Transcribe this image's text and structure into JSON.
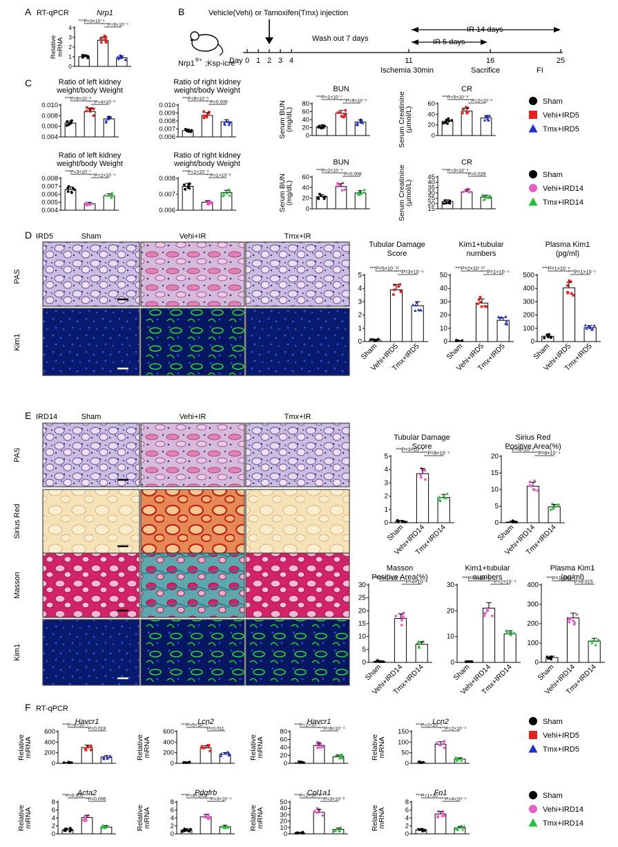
{
  "colors": {
    "sham": "#000000",
    "vehi5": "#e8211f",
    "tmx5": "#1f2fd6",
    "vehi14": "#e85ec8",
    "tmx14": "#22c435",
    "green_micro": "#1fd41f",
    "blue_micro": "#0a1e8a"
  },
  "panel_a": {
    "letter": "A",
    "title": "RT-qPCR",
    "gene": "Nrp1",
    "ylabel": "Relative mRNA",
    "stats": [
      "***P=3×10⁻⁶",
      "***P=6×10⁻⁷"
    ],
    "chart_data": {
      "type": "bar",
      "categories": [
        "Sham",
        "Vehi",
        "Tmx"
      ],
      "values": [
        1.0,
        2.7,
        0.9
      ],
      "errors": [
        0.2,
        0.25,
        0.1
      ],
      "ylim": [
        0,
        4
      ],
      "yticks": [
        "0",
        "1",
        "2",
        "3",
        "4"
      ],
      "colors": [
        "#000000",
        "#e8211f",
        "#1f2fd6"
      ]
    }
  },
  "panel_b": {
    "letter": "B",
    "title": "Vehicle(Vehi) or Tamoxifen(Tmx) injection",
    "mouse_label": "Nrp1 fl/+;Ksp-icre",
    "washout": "Wash out 7 days",
    "ir5": "IR 5 days",
    "ir14": "IR 14 days",
    "days": [
      "Day",
      "0",
      "1",
      "2",
      "3",
      "4",
      "11",
      "16",
      "25"
    ],
    "events": [
      "Ischemia 30min",
      "Sacrifice",
      "FI"
    ]
  },
  "panel_c": {
    "letter": "C",
    "legend_top": [
      "Sham",
      "Vehi+IRD5",
      "Tmx+IRD5"
    ],
    "legend_bottom": [
      "Sham",
      "Vehi+IRD14",
      "Tmx+IRD14"
    ],
    "charts": [
      {
        "title": [
          "Ratio of left kidney",
          "weight/body Weight"
        ],
        "ylabel": "",
        "stats": [
          "***P=6×10⁻⁶",
          "***P=4×10⁻⁶"
        ],
        "chart_data": {
          "type": "bar",
          "categories": [
            "Sham",
            "Vehi+IRD5",
            "Tmx+IRD5"
          ],
          "values": [
            0.0066,
            0.0088,
            0.0074
          ],
          "ylim": [
            0.004,
            0.01
          ],
          "yticks": [
            "0.004",
            "0.006",
            "0.008",
            "0.010"
          ]
        }
      },
      {
        "title": [
          "Ratio of right kidney",
          "weight/body Weight"
        ],
        "ylabel": "",
        "stats": [
          "***P=8×10⁻⁶",
          "**P=0.005"
        ],
        "chart_data": {
          "type": "bar",
          "categories": [
            "Sham",
            "Vehi+IRD5",
            "Tmx+IRD5"
          ],
          "values": [
            0.0068,
            0.0087,
            0.0079
          ],
          "ylim": [
            0.006,
            0.01
          ],
          "yticks": [
            "0.006",
            "0.007",
            "0.008",
            "0.009",
            "0.010"
          ]
        }
      },
      {
        "title": [
          "BUN"
        ],
        "ylabel": "Serum BUN (mg/dL)",
        "stats": [
          "***P=1×10⁻⁷",
          "***P=9×10⁻⁶"
        ],
        "chart_data": {
          "type": "bar",
          "categories": [
            "Sham",
            "Vehi+IRD5",
            "Tmx+IRD5"
          ],
          "values": [
            22,
            56,
            34
          ],
          "ylim": [
            0,
            80
          ],
          "yticks": [
            "0",
            "20",
            "40",
            "60",
            "80"
          ]
        }
      },
      {
        "title": [
          "CR"
        ],
        "ylabel": "Serum Creatinine (µmol/L)",
        "stats": [
          "***P=5×10⁻⁸",
          "***P=2×10⁻⁶"
        ],
        "chart_data": {
          "type": "bar",
          "categories": [
            "Sham",
            "Vehi+IRD5",
            "Tmx+IRD5"
          ],
          "values": [
            27,
            46,
            33
          ],
          "ylim": [
            0,
            60
          ],
          "yticks": [
            "0",
            "20",
            "40",
            "60"
          ]
        }
      },
      {
        "title": [
          "Ratio of left kidney",
          "weight/body Weight"
        ],
        "ylabel": "",
        "stats": [
          "***P=3×10⁻⁷",
          "***P=2×10⁻⁴"
        ],
        "chart_data": {
          "type": "bar",
          "categories": [
            "Sham",
            "Vehi+IRD14",
            "Tmx+IRD14"
          ],
          "values": [
            0.0066,
            0.0048,
            0.0058
          ],
          "ylim": [
            0.004,
            0.008
          ],
          "yticks": [
            "0.004",
            "0.005",
            "0.006",
            "0.007",
            "0.008"
          ]
        }
      },
      {
        "title": [
          "Ratio of right kidney",
          "weight/body Weight"
        ],
        "ylabel": "",
        "stats": [
          "***P=2×10⁻⁴",
          "**P=1×10⁻⁶"
        ],
        "chart_data": {
          "type": "bar",
          "categories": [
            "Sham",
            "Vehi+IRD14",
            "Tmx+IRD14"
          ],
          "values": [
            0.0075,
            0.0065,
            0.0071
          ],
          "ylim": [
            0.006,
            0.008
          ],
          "yticks": [
            "0.006",
            "0.007",
            "0.008"
          ]
        }
      },
      {
        "title": [
          "BUN"
        ],
        "ylabel": "Serum BUN (mg/dL)",
        "stats": [
          "***P=2×10⁻⁴",
          "**P=0.008"
        ],
        "chart_data": {
          "type": "bar",
          "categories": [
            "Sham",
            "Vehi+IRD14",
            "Tmx+IRD14"
          ],
          "values": [
            23,
            42,
            30
          ],
          "ylim": [
            0,
            60
          ],
          "yticks": [
            "0",
            "20",
            "40",
            "60"
          ]
        }
      },
      {
        "title": [
          "CR"
        ],
        "ylabel": "Serum Creatinine (µmol/L)",
        "stats": [
          "***P=3×10⁻⁴",
          "*P=0.029"
        ],
        "chart_data": {
          "type": "bar",
          "categories": [
            "Sham",
            "Vehi+IRD14",
            "Tmx+IRD14"
          ],
          "values": [
            22,
            31,
            26
          ],
          "ylim": [
            15,
            45
          ],
          "yticks": [
            "15",
            "20",
            "25",
            "30",
            "35",
            "40",
            "45"
          ]
        }
      }
    ]
  },
  "panel_d": {
    "letter": "D",
    "group": "IRD5",
    "cols": [
      "Sham",
      "Vehi+IR",
      "Tmx+IR"
    ],
    "rows": [
      "PAS",
      "Kim1"
    ],
    "charts": [
      {
        "title": [
          "Tubular Damage",
          "Score"
        ],
        "stats": [
          "***P=5×10⁻¹²",
          "***P=3×10⁻⁴"
        ],
        "chart_data": {
          "type": "bar",
          "categories": [
            "Sham",
            "Vehi+IRD5",
            "Tmx+IRD5"
          ],
          "values": [
            0.1,
            3.9,
            2.7
          ],
          "ylim": [
            0,
            5
          ],
          "yticks": [
            "0",
            "1",
            "2",
            "3",
            "4",
            "5"
          ]
        }
      },
      {
        "title": [
          "Kim1+tubular",
          "numbers"
        ],
        "stats": [
          "***P=2×10⁻¹⁰",
          "***P=1×10⁻⁴"
        ],
        "chart_data": {
          "type": "bar",
          "categories": [
            "Sham",
            "Vehi+IRD5",
            "Tmx+IRD5"
          ],
          "values": [
            0,
            29,
            16
          ],
          "ylim": [
            0,
            50
          ],
          "yticks": [
            "0",
            "10",
            "20",
            "30",
            "40",
            "50"
          ]
        }
      },
      {
        "title": [
          "Plasma Kim1",
          "(pg/ml)"
        ],
        "stats": [
          "***P=1×10⁻⁶",
          "***P=1×10⁻⁵"
        ],
        "chart_data": {
          "type": "bar",
          "categories": [
            "Sham",
            "Vehi+IRD5",
            "Tmx+IRD5"
          ],
          "values": [
            40,
            405,
            105
          ],
          "ylim": [
            0,
            500
          ],
          "yticks": [
            "0",
            "100",
            "200",
            "300",
            "400",
            "500"
          ]
        }
      }
    ]
  },
  "panel_e": {
    "letter": "E",
    "group": "IRD14",
    "cols": [
      "Sham",
      "Vehi+IR",
      "Tmx+IR"
    ],
    "rows": [
      "PAS",
      "Sirius Red",
      "Masson",
      "Kim1"
    ],
    "charts": [
      {
        "title": [
          "Tubular Damage",
          "Score"
        ],
        "stats": [
          "***P=3×10⁻⁹",
          "***P=8×10⁻⁵"
        ],
        "chart_data": {
          "type": "bar",
          "categories": [
            "Sham",
            "Vehi+IRD14",
            "Tmx+IRD14"
          ],
          "values": [
            0.1,
            3.7,
            1.9
          ],
          "ylim": [
            0,
            5
          ],
          "yticks": [
            "0",
            "1",
            "2",
            "3",
            "4",
            "5"
          ]
        }
      },
      {
        "title": [
          "Sirius Red",
          "Positive Area(%)"
        ],
        "stats": [
          "***P=4×10⁻⁶",
          "***P=8×10⁻⁵"
        ],
        "chart_data": {
          "type": "bar",
          "categories": [
            "Sham",
            "Vehi+IRD14",
            "Tmx+IRD14"
          ],
          "values": [
            0.2,
            11,
            4.8
          ],
          "ylim": [
            0,
            20
          ],
          "yticks": [
            "0",
            "5",
            "10",
            "15",
            "20"
          ]
        }
      },
      {
        "title": [
          "Masson",
          "Positive Area(%)"
        ],
        "stats": [
          "***P=1×10⁻⁹",
          "***P=4×10⁻⁶"
        ],
        "chart_data": {
          "type": "bar",
          "categories": [
            "Sham",
            "Vehi+IRD14",
            "Tmx+IRD14"
          ],
          "values": [
            0.3,
            17,
            7
          ],
          "ylim": [
            0,
            30
          ],
          "yticks": [
            "0",
            "5",
            "10",
            "15",
            "20",
            "25",
            "30"
          ]
        }
      },
      {
        "title": [
          "Kim1+tubular",
          "numbers"
        ],
        "stats": [
          "***P=6×10⁻⁹",
          "***P=2×10⁻⁴"
        ],
        "chart_data": {
          "type": "bar",
          "categories": [
            "Sham",
            "Vehi+IRD14",
            "Tmx+IRD14"
          ],
          "values": [
            0,
            21,
            11
          ],
          "ylim": [
            0,
            30
          ],
          "yticks": [
            "0",
            "10",
            "20",
            "30"
          ]
        }
      },
      {
        "title": [
          "Plasma Kim1",
          "(pg/ml)"
        ],
        "stats": [
          "***P=1×10⁻⁴",
          "*P=0.015"
        ],
        "chart_data": {
          "type": "bar",
          "categories": [
            "Sham",
            "Vehi+IRD14",
            "Tmx+IRD14"
          ],
          "values": [
            25,
            230,
            110
          ],
          "ylim": [
            0,
            400
          ],
          "yticks": [
            "0",
            "100",
            "200",
            "300",
            "400"
          ]
        }
      }
    ]
  },
  "panel_f": {
    "letter": "F",
    "title": "RT-qPCR",
    "ylabel": "Relative mRNA",
    "legend_top": [
      "Sham",
      "Vehi+IRD5",
      "Tmx+IRD5"
    ],
    "legend_bottom": [
      "Sham",
      "Vehi+IRD14",
      "Tmx+IRD14"
    ],
    "charts": [
      {
        "gene": "Havcr1",
        "stats": [
          "***P=8×10⁻⁴",
          "*P=0.019"
        ],
        "chart_data": {
          "type": "bar",
          "categories": [
            "Sham",
            "Vehi+IRD5",
            "Tmx+IRD5"
          ],
          "values": [
            1,
            300,
            120
          ],
          "ylim": [
            0,
            600
          ],
          "yticks": [
            "0",
            "200",
            "400",
            "600"
          ]
        }
      },
      {
        "gene": "Lcn2",
        "stats": [
          "***P=5×10⁻⁶",
          "*P=0.011"
        ],
        "chart_data": {
          "type": "bar",
          "categories": [
            "Sham",
            "Vehi+IRD5",
            "Tmx+IRD5"
          ],
          "values": [
            1,
            290,
            170
          ],
          "ylim": [
            0,
            600
          ],
          "yticks": [
            "0",
            "200",
            "400",
            "600"
          ]
        }
      },
      {
        "gene": "Havcr1",
        "stats": [
          "***P=1×10⁻⁵",
          "***P=6×10⁻⁴"
        ],
        "chart_data": {
          "type": "bar",
          "categories": [
            "Sham",
            "Vehi+IRD14",
            "Tmx+IRD14"
          ],
          "values": [
            1,
            45,
            17
          ],
          "ylim": [
            0,
            80
          ],
          "yticks": [
            "0",
            "20",
            "40",
            "60",
            "80"
          ]
        }
      },
      {
        "gene": "Lcn2",
        "stats": [
          "***P=2×10⁻⁵",
          "***P=2×10⁻⁴"
        ],
        "chart_data": {
          "type": "bar",
          "categories": [
            "Sham",
            "Vehi+IRD14",
            "Tmx+IRD14"
          ],
          "values": [
            1,
            90,
            20
          ],
          "ylim": [
            0,
            150
          ],
          "yticks": [
            "0",
            "50",
            "100",
            "150"
          ]
        }
      },
      {
        "gene": "Acta2",
        "stats": [
          "**P=0.001",
          "*P=0.006"
        ],
        "chart_data": {
          "type": "bar",
          "categories": [
            "Sham",
            "Vehi+IRD14",
            "Tmx+IRD14"
          ],
          "values": [
            1,
            4.1,
            1.7
          ],
          "ylim": [
            0,
            8
          ],
          "yticks": [
            "0",
            "2",
            "4",
            "6",
            "8"
          ]
        }
      },
      {
        "gene": "Pdgfrb",
        "stats": [
          "***P=4×10⁻⁵",
          "***P=3×10⁻⁴"
        ],
        "chart_data": {
          "type": "bar",
          "categories": [
            "Sham",
            "Vehi+IRD14",
            "Tmx+IRD14"
          ],
          "values": [
            1,
            4.3,
            1.8
          ],
          "ylim": [
            0,
            8
          ],
          "yticks": [
            "0",
            "2",
            "4",
            "6",
            "8"
          ]
        }
      },
      {
        "gene": "Col1a1",
        "stats": [
          "***P=2×10⁻⁹",
          "***P=3×10⁻⁸"
        ],
        "chart_data": {
          "type": "bar",
          "categories": [
            "Sham",
            "Vehi+IRD14",
            "Tmx+IRD14"
          ],
          "values": [
            1,
            34,
            7
          ],
          "ylim": [
            0,
            50
          ],
          "yticks": [
            "0",
            "10",
            "20",
            "30",
            "40",
            "50"
          ]
        }
      },
      {
        "gene": "Fn1",
        "stats": [
          "***P=1×10⁻⁵",
          "***P=4×10⁻⁵"
        ],
        "chart_data": {
          "type": "bar",
          "categories": [
            "Sham",
            "Vehi+IRD14",
            "Tmx+IRD14"
          ],
          "values": [
            1,
            5,
            1.5
          ],
          "ylim": [
            0,
            8
          ],
          "yticks": [
            "0",
            "2",
            "4",
            "6",
            "8"
          ]
        }
      }
    ]
  }
}
